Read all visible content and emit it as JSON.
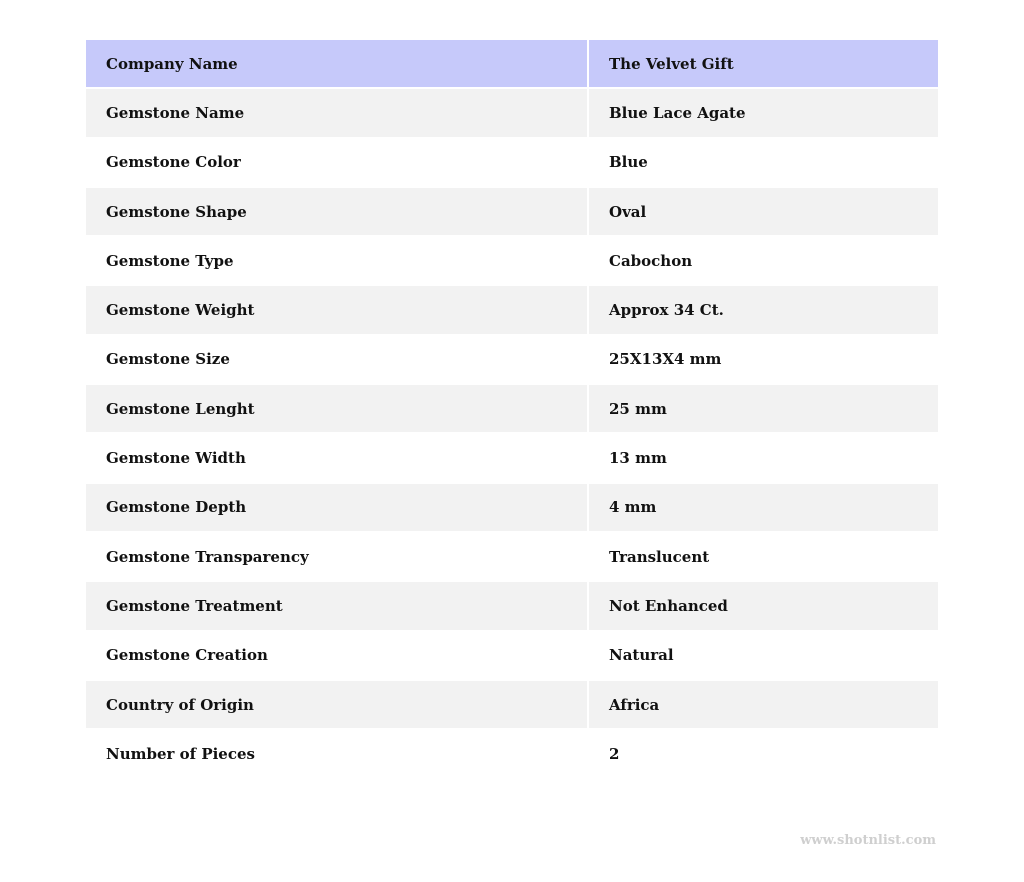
{
  "header": {
    "label": "Company Name",
    "value": "The Velvet Gift"
  },
  "rows": [
    {
      "label": "Gemstone Name",
      "value": "Blue Lace Agate"
    },
    {
      "label": "Gemstone Color",
      "value": "Blue"
    },
    {
      "label": "Gemstone Shape",
      "value": "Oval"
    },
    {
      "label": "Gemstone Type",
      "value": "Cabochon"
    },
    {
      "label": "Gemstone Weight",
      "value": "Approx 34 Ct."
    },
    {
      "label": "Gemstone Size",
      "value": "25X13X4 mm"
    },
    {
      "label": "Gemstone Lenght",
      "value": "25 mm"
    },
    {
      "label": "Gemstone Width",
      "value": "13 mm"
    },
    {
      "label": "Gemstone Depth",
      "value": "4 mm"
    },
    {
      "label": "Gemstone Transparency",
      "value": "Translucent"
    },
    {
      "label": "Gemstone Treatment",
      "value": "Not Enhanced"
    },
    {
      "label": "Gemstone Creation",
      "value": "Natural"
    },
    {
      "label": "Country of Origin",
      "value": "Africa"
    },
    {
      "label": "Number of Pieces",
      "value": "2"
    }
  ],
  "watermark": "www.shotnlist.com",
  "colors": {
    "header_bg": "#c6c9fa",
    "alt_row_bg": "#f2f2f2",
    "watermark": "#cfcfcf"
  }
}
